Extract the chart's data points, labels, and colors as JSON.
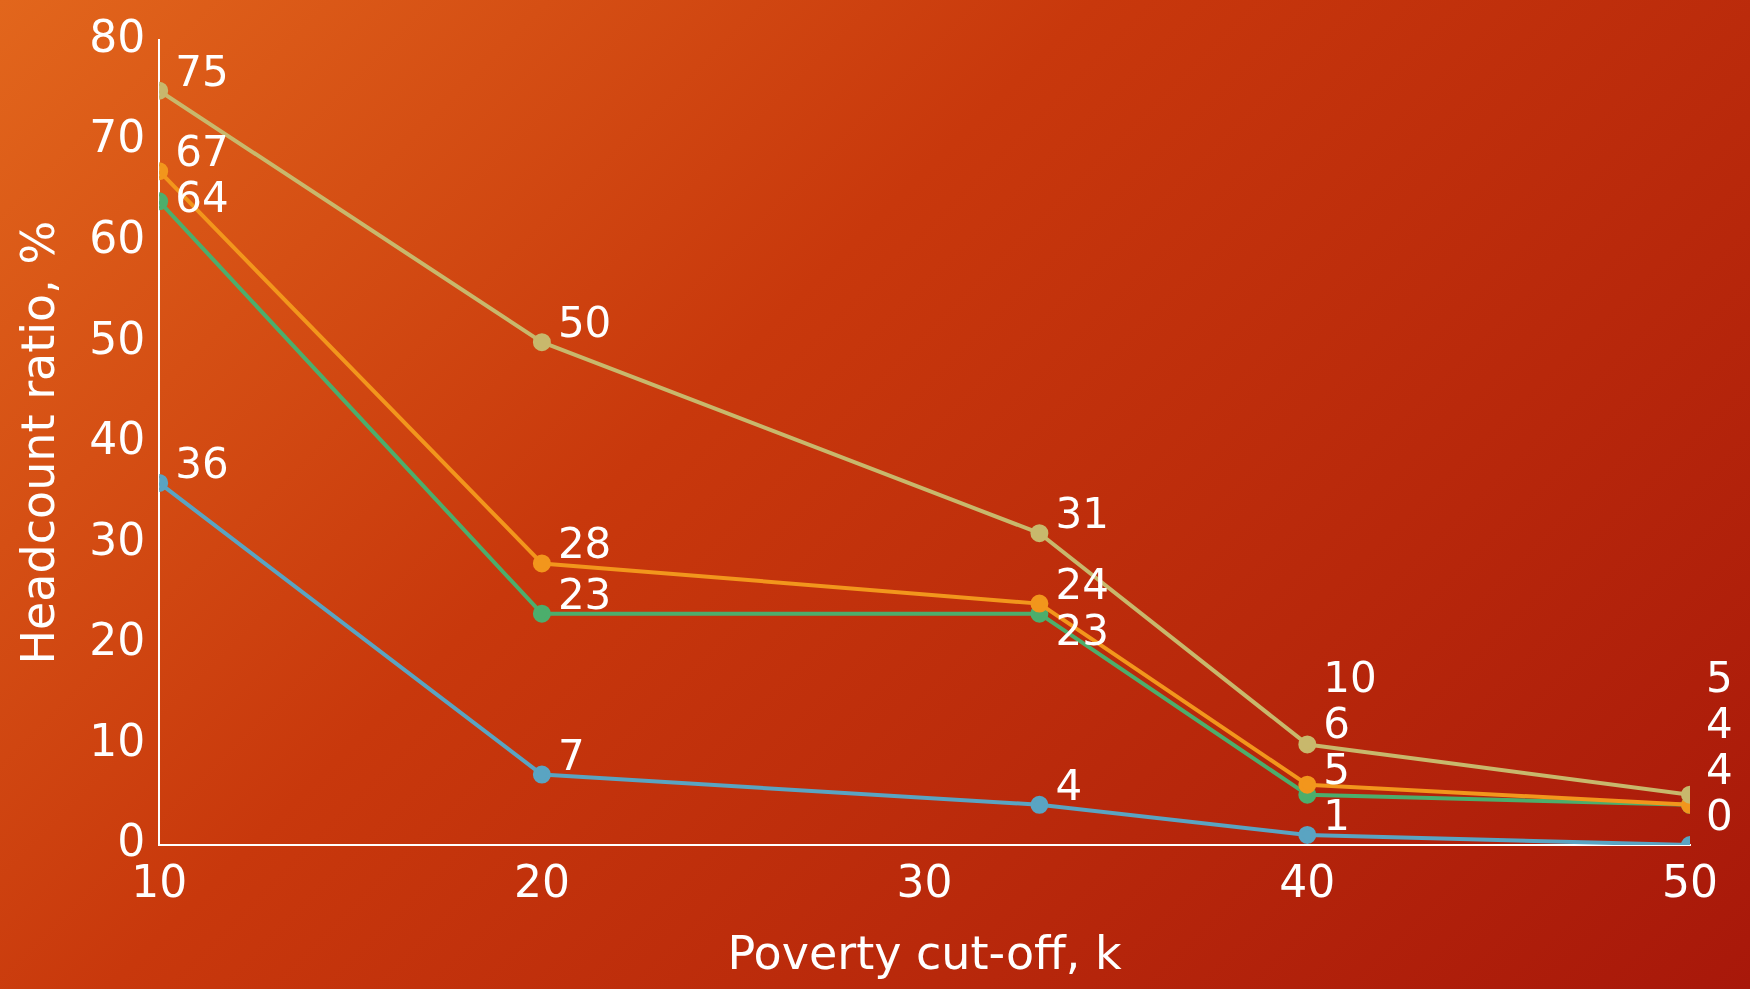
{
  "chart_data": {
    "type": "line",
    "xlabel": "Poverty cut-off, k",
    "ylabel": "Headcount ratio, %",
    "x": [
      10,
      20,
      33,
      40,
      50
    ],
    "series": [
      {
        "color": "#c8b86c",
        "values": [
          75,
          50,
          31,
          10,
          5
        ]
      },
      {
        "color": "#f2961c",
        "values": [
          67,
          28,
          24,
          6,
          4
        ]
      },
      {
        "color": "#4cae6c",
        "values": [
          64,
          23,
          23,
          5,
          4
        ]
      },
      {
        "color": "#5aa4c2",
        "values": [
          36,
          7,
          4,
          1,
          0
        ]
      }
    ],
    "xlim": [
      10,
      50
    ],
    "xticks": [
      10,
      20,
      30,
      40,
      50
    ],
    "ylim": [
      0,
      80
    ],
    "yticks": [
      0,
      10,
      20,
      30,
      40,
      50,
      60,
      70,
      80
    ],
    "grid": false,
    "legend": false,
    "marker": "circle",
    "line_style": "solid",
    "data_labels": true
  }
}
